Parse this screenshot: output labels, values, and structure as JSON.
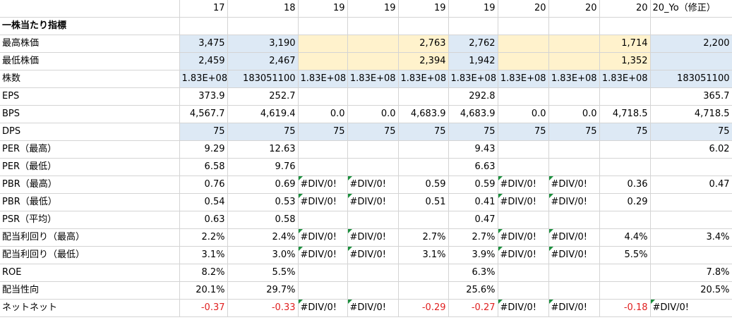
{
  "headers": [
    "",
    "17",
    "18",
    "19",
    "19",
    "19",
    "19",
    "20",
    "20",
    "20",
    "20_Yo（修正）"
  ],
  "rows": [
    {
      "name": "per-share-header",
      "cells": [
        "一株当たり指標",
        "",
        "",
        "",
        "",
        "",
        "",
        "",
        "",
        "",
        ""
      ],
      "bold": true
    },
    {
      "name": "high-price",
      "cells": [
        "最高株価",
        "3,475",
        "3,190",
        "",
        "",
        "2,763",
        "2,762",
        "",
        "",
        "1,714",
        "2,200"
      ],
      "fill": [
        "",
        "blue",
        "blue",
        "yellow",
        "yellow",
        "yellow",
        "blue",
        "yellow",
        "yellow",
        "yellow",
        "blue"
      ]
    },
    {
      "name": "low-price",
      "cells": [
        "最低株価",
        "2,459",
        "2,467",
        "",
        "",
        "2,394",
        "1,942",
        "",
        "",
        "1,352",
        ""
      ],
      "fill": [
        "",
        "blue",
        "blue",
        "yellow",
        "yellow",
        "yellow",
        "blue",
        "yellow",
        "yellow",
        "yellow",
        "blue"
      ]
    },
    {
      "name": "shares",
      "cells": [
        "株数",
        "1.83E+08",
        "183051100",
        "1.83E+08",
        "1.83E+08",
        "1.83E+08",
        "1.83E+08",
        "1.83E+08",
        "1.83E+08",
        "1.83E+08",
        "183051100"
      ],
      "fill": [
        "",
        "blue",
        "blue",
        "blue",
        "blue",
        "blue",
        "blue",
        "blue",
        "blue",
        "blue",
        "blue"
      ]
    },
    {
      "name": "eps",
      "cells": [
        "EPS",
        "373.9",
        "252.7",
        "",
        "",
        "",
        "292.8",
        "",
        "",
        "",
        "365.7"
      ]
    },
    {
      "name": "bps",
      "cells": [
        "BPS",
        "4,567.7",
        "4,619.4",
        "0.0",
        "0.0",
        "4,683.9",
        "4,683.9",
        "0.0",
        "0.0",
        "4,718.5",
        "4,718.5"
      ]
    },
    {
      "name": "dps",
      "cells": [
        "DPS",
        "75",
        "75",
        "75",
        "75",
        "75",
        "75",
        "75",
        "75",
        "75",
        "75"
      ],
      "fill": [
        "",
        "blue",
        "blue",
        "blue",
        "blue",
        "blue",
        "blue",
        "blue",
        "blue",
        "blue",
        "blue"
      ]
    },
    {
      "name": "per-high",
      "cells": [
        "PER（最高）",
        "9.29",
        "12.63",
        "",
        "",
        "",
        "9.43",
        "",
        "",
        "",
        "6.02"
      ]
    },
    {
      "name": "per-low",
      "cells": [
        "PER（最低）",
        "6.58",
        "9.76",
        "",
        "",
        "",
        "6.63",
        "",
        "",
        "",
        ""
      ]
    },
    {
      "name": "pbr-high",
      "cells": [
        "PBR（最高）",
        "0.76",
        "0.69",
        "#DIV/0!",
        "#DIV/0!",
        "0.59",
        "0.59",
        "#DIV/0!",
        "#DIV/0!",
        "0.36",
        "0.47"
      ]
    },
    {
      "name": "pbr-low",
      "cells": [
        "PBR（最低）",
        "0.54",
        "0.53",
        "#DIV/0!",
        "#DIV/0!",
        "0.51",
        "0.41",
        "#DIV/0!",
        "#DIV/0!",
        "0.29",
        ""
      ]
    },
    {
      "name": "psr-avg",
      "cells": [
        "PSR（平均）",
        "0.63",
        "0.58",
        "",
        "",
        "",
        "0.47",
        "",
        "",
        "",
        ""
      ]
    },
    {
      "name": "yield-high",
      "cells": [
        "配当利回り（最高）",
        "2.2%",
        "2.4%",
        "#DIV/0!",
        "#DIV/0!",
        "2.7%",
        "2.7%",
        "#DIV/0!",
        "#DIV/0!",
        "4.4%",
        "3.4%"
      ]
    },
    {
      "name": "yield-low",
      "cells": [
        "配当利回り（最低）",
        "3.1%",
        "3.0%",
        "#DIV/0!",
        "#DIV/0!",
        "3.1%",
        "3.9%",
        "#DIV/0!",
        "#DIV/0!",
        "5.5%",
        ""
      ]
    },
    {
      "name": "roe",
      "cells": [
        "ROE",
        "8.2%",
        "5.5%",
        "",
        "",
        "",
        "6.3%",
        "",
        "",
        "",
        "7.8%"
      ]
    },
    {
      "name": "payout-ratio",
      "cells": [
        "配当性向",
        "20.1%",
        "29.7%",
        "",
        "",
        "",
        "25.6%",
        "",
        "",
        "",
        "20.5%"
      ]
    },
    {
      "name": "net-net",
      "cells": [
        "ネットネット",
        "-0.37",
        "-0.33",
        "#DIV/0!",
        "#DIV/0!",
        "-0.29",
        "-0.27",
        "#DIV/0!",
        "#DIV/0!",
        "-0.18",
        "#DIV/0!"
      ]
    }
  ],
  "colors": {
    "highlight_blue": "#dde9f5",
    "highlight_yellow": "#fff2cc",
    "negative_text": "#e02020",
    "error_indicator": "#1a8f3c"
  }
}
